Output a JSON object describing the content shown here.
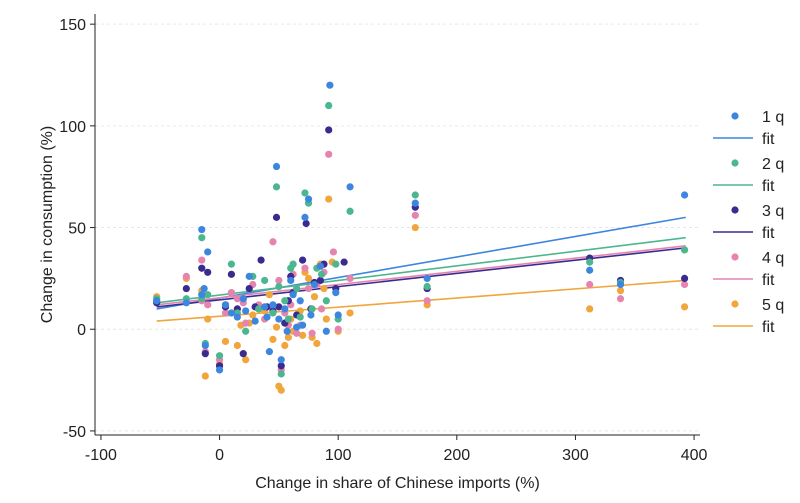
{
  "chart_data": {
    "type": "scatter",
    "title": "",
    "xlabel": "Change in share of Chinese imports (%)",
    "ylabel": "Change in consumption (%)",
    "xlim": [
      -105,
      405
    ],
    "ylim": [
      -52,
      155
    ],
    "xticks": [
      -100,
      0,
      100,
      200,
      300,
      400
    ],
    "yticks": [
      -50,
      0,
      50,
      100,
      150
    ],
    "grid": "y-dashed",
    "legend_position": "right",
    "series": [
      {
        "name": "1 q",
        "color": "#3d86e0",
        "fit_label": "fit",
        "fit": [
          [
            -53,
            10
          ],
          [
            393,
            55
          ]
        ],
        "points": [
          [
            -53,
            14
          ],
          [
            -28,
            13
          ],
          [
            -15,
            49
          ],
          [
            -15,
            17
          ],
          [
            -13,
            20
          ],
          [
            -12,
            -8
          ],
          [
            -10,
            38
          ],
          [
            0,
            -20
          ],
          [
            5,
            12
          ],
          [
            10,
            8
          ],
          [
            15,
            6
          ],
          [
            20,
            15
          ],
          [
            22,
            9
          ],
          [
            25,
            26
          ],
          [
            30,
            4
          ],
          [
            38,
            11
          ],
          [
            40,
            6
          ],
          [
            42,
            -11
          ],
          [
            45,
            12
          ],
          [
            48,
            80
          ],
          [
            50,
            5
          ],
          [
            52,
            -15
          ],
          [
            55,
            10
          ],
          [
            57,
            -1
          ],
          [
            60,
            24
          ],
          [
            62,
            17
          ],
          [
            65,
            1
          ],
          [
            68,
            14
          ],
          [
            70,
            2
          ],
          [
            72,
            55
          ],
          [
            75,
            64
          ],
          [
            77,
            7
          ],
          [
            80,
            22
          ],
          [
            85,
            31
          ],
          [
            90,
            -1
          ],
          [
            93,
            120
          ],
          [
            98,
            18
          ],
          [
            100,
            7
          ],
          [
            110,
            70
          ],
          [
            165,
            62
          ],
          [
            175,
            25
          ],
          [
            312,
            29
          ],
          [
            338,
            22
          ],
          [
            392,
            66
          ]
        ]
      },
      {
        "name": "2 q",
        "color": "#4cb78e",
        "fit_label": "fit",
        "fit": [
          [
            -53,
            13
          ],
          [
            393,
            45
          ]
        ],
        "points": [
          [
            -53,
            15
          ],
          [
            -28,
            15
          ],
          [
            -15,
            45
          ],
          [
            -15,
            15
          ],
          [
            -12,
            -7
          ],
          [
            -10,
            17
          ],
          [
            0,
            -13
          ],
          [
            5,
            12
          ],
          [
            10,
            32
          ],
          [
            15,
            8
          ],
          [
            20,
            15
          ],
          [
            22,
            -1
          ],
          [
            28,
            26
          ],
          [
            33,
            10
          ],
          [
            38,
            24
          ],
          [
            45,
            8
          ],
          [
            48,
            70
          ],
          [
            50,
            21
          ],
          [
            52,
            -22
          ],
          [
            55,
            14
          ],
          [
            58,
            5
          ],
          [
            60,
            30
          ],
          [
            62,
            32
          ],
          [
            65,
            20
          ],
          [
            68,
            6
          ],
          [
            72,
            67
          ],
          [
            75,
            62
          ],
          [
            78,
            10
          ],
          [
            82,
            30
          ],
          [
            86,
            27
          ],
          [
            90,
            14
          ],
          [
            92,
            110
          ],
          [
            98,
            32
          ],
          [
            100,
            5
          ],
          [
            110,
            58
          ],
          [
            165,
            66
          ],
          [
            175,
            21
          ],
          [
            312,
            33
          ],
          [
            338,
            23
          ],
          [
            392,
            39
          ]
        ]
      },
      {
        "name": "3 q",
        "color": "#3a2b8e",
        "fit_label": "fit",
        "fit": [
          [
            -53,
            11
          ],
          [
            393,
            40
          ]
        ],
        "points": [
          [
            -53,
            13
          ],
          [
            -28,
            20
          ],
          [
            -15,
            30
          ],
          [
            -12,
            -12
          ],
          [
            -10,
            28
          ],
          [
            0,
            -18
          ],
          [
            5,
            11
          ],
          [
            10,
            27
          ],
          [
            15,
            10
          ],
          [
            20,
            -12
          ],
          [
            25,
            20
          ],
          [
            30,
            11
          ],
          [
            35,
            34
          ],
          [
            40,
            11
          ],
          [
            45,
            9
          ],
          [
            48,
            55
          ],
          [
            50,
            11
          ],
          [
            52,
            -18
          ],
          [
            55,
            3
          ],
          [
            58,
            14
          ],
          [
            60,
            26
          ],
          [
            62,
            18
          ],
          [
            65,
            7
          ],
          [
            70,
            34
          ],
          [
            73,
            52
          ],
          [
            77,
            10
          ],
          [
            80,
            23
          ],
          [
            85,
            24
          ],
          [
            88,
            32
          ],
          [
            92,
            98
          ],
          [
            98,
            20
          ],
          [
            105,
            33
          ],
          [
            165,
            60
          ],
          [
            175,
            20
          ],
          [
            312,
            35
          ],
          [
            338,
            24
          ],
          [
            392,
            25
          ]
        ]
      },
      {
        "name": "4 q",
        "color": "#e684b0",
        "fit_label": "fit",
        "fit": [
          [
            -53,
            12
          ],
          [
            393,
            41
          ]
        ],
        "points": [
          [
            -53,
            14
          ],
          [
            -28,
            26
          ],
          [
            -15,
            34
          ],
          [
            -15,
            14
          ],
          [
            -12,
            -11
          ],
          [
            -10,
            12
          ],
          [
            0,
            -15
          ],
          [
            5,
            8
          ],
          [
            10,
            18
          ],
          [
            15,
            15
          ],
          [
            20,
            13
          ],
          [
            22,
            3
          ],
          [
            28,
            22
          ],
          [
            33,
            12
          ],
          [
            38,
            5
          ],
          [
            45,
            43
          ],
          [
            50,
            24
          ],
          [
            52,
            -20
          ],
          [
            55,
            8
          ],
          [
            58,
            2
          ],
          [
            60,
            12
          ],
          [
            62,
            27
          ],
          [
            65,
            -2
          ],
          [
            68,
            2
          ],
          [
            72,
            30
          ],
          [
            75,
            20
          ],
          [
            78,
            -2
          ],
          [
            82,
            22
          ],
          [
            86,
            10
          ],
          [
            88,
            28
          ],
          [
            92,
            86
          ],
          [
            96,
            38
          ],
          [
            100,
            0
          ],
          [
            110,
            25
          ],
          [
            165,
            56
          ],
          [
            175,
            14
          ],
          [
            312,
            22
          ],
          [
            338,
            15
          ],
          [
            392,
            22
          ]
        ]
      },
      {
        "name": "5 q",
        "color": "#f0a63c",
        "fit_label": "fit",
        "fit": [
          [
            -53,
            4
          ],
          [
            393,
            24
          ]
        ],
        "points": [
          [
            -53,
            16
          ],
          [
            -28,
            25
          ],
          [
            -15,
            19
          ],
          [
            -12,
            -23
          ],
          [
            -10,
            5
          ],
          [
            0,
            -17
          ],
          [
            5,
            -6
          ],
          [
            10,
            18
          ],
          [
            15,
            -8
          ],
          [
            18,
            2
          ],
          [
            22,
            -15
          ],
          [
            25,
            3
          ],
          [
            28,
            7
          ],
          [
            33,
            10
          ],
          [
            38,
            9
          ],
          [
            42,
            17
          ],
          [
            45,
            -5
          ],
          [
            48,
            1
          ],
          [
            50,
            -28
          ],
          [
            52,
            -30
          ],
          [
            55,
            -8
          ],
          [
            58,
            -4
          ],
          [
            60,
            5
          ],
          [
            62,
            -1
          ],
          [
            65,
            20
          ],
          [
            68,
            9
          ],
          [
            70,
            -3
          ],
          [
            72,
            28
          ],
          [
            75,
            25
          ],
          [
            78,
            -4
          ],
          [
            80,
            16
          ],
          [
            82,
            -7
          ],
          [
            85,
            32
          ],
          [
            88,
            20
          ],
          [
            90,
            5
          ],
          [
            92,
            64
          ],
          [
            95,
            33
          ],
          [
            100,
            -1
          ],
          [
            110,
            8
          ],
          [
            165,
            50
          ],
          [
            175,
            12
          ],
          [
            312,
            10
          ],
          [
            338,
            19
          ],
          [
            392,
            11
          ]
        ]
      }
    ]
  }
}
